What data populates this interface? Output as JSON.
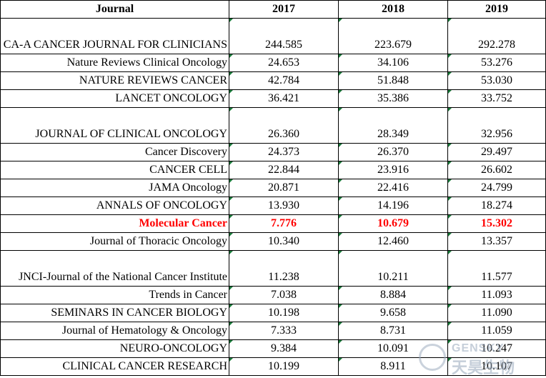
{
  "table": {
    "headers": [
      "Journal",
      "2017",
      "2018",
      "2019"
    ],
    "rows": [
      {
        "journal": "CA-A CANCER JOURNAL FOR CLINICIANS",
        "v2017": "244.585",
        "v2018": "223.679",
        "v2019": "292.278"
      },
      {
        "journal": "Nature Reviews Clinical Oncology",
        "v2017": "24.653",
        "v2018": "34.106",
        "v2019": "53.276"
      },
      {
        "journal": "NATURE REVIEWS CANCER",
        "v2017": "42.784",
        "v2018": "51.848",
        "v2019": "53.030"
      },
      {
        "journal": "LANCET ONCOLOGY",
        "v2017": "36.421",
        "v2018": "35.386",
        "v2019": "33.752"
      },
      {
        "journal": "JOURNAL OF CLINICAL ONCOLOGY",
        "v2017": "26.360",
        "v2018": "28.349",
        "v2019": "32.956"
      },
      {
        "journal": "Cancer Discovery",
        "v2017": "24.373",
        "v2018": "26.370",
        "v2019": "29.497"
      },
      {
        "journal": "CANCER CELL",
        "v2017": "22.844",
        "v2018": "23.916",
        "v2019": "26.602"
      },
      {
        "journal": "JAMA Oncology",
        "v2017": "20.871",
        "v2018": "22.416",
        "v2019": "24.799"
      },
      {
        "journal": "ANNALS OF ONCOLOGY",
        "v2017": "13.930",
        "v2018": "14.196",
        "v2019": "18.274"
      },
      {
        "journal": "Molecular Cancer",
        "v2017": "7.776",
        "v2018": "10.679",
        "v2019": "15.302"
      },
      {
        "journal": "Journal of Thoracic Oncology",
        "v2017": "10.340",
        "v2018": "12.460",
        "v2019": "13.357"
      },
      {
        "journal": "JNCI-Journal of the National Cancer Institute",
        "v2017": "11.238",
        "v2018": "10.211",
        "v2019": "11.577"
      },
      {
        "journal": "Trends in Cancer",
        "v2017": "7.038",
        "v2018": "8.884",
        "v2019": "11.093"
      },
      {
        "journal": "SEMINARS IN CANCER BIOLOGY",
        "v2017": "10.198",
        "v2018": "9.658",
        "v2019": "11.090"
      },
      {
        "journal": "Journal of Hematology & Oncology",
        "v2017": "7.333",
        "v2018": "8.731",
        "v2019": "11.059"
      },
      {
        "journal": "NEURO-ONCOLOGY",
        "v2017": "9.384",
        "v2018": "10.091",
        "v2019": "10.247"
      },
      {
        "journal": "CLINICAL CANCER RESEARCH",
        "v2017": "10.199",
        "v2018": "8.911",
        "v2019": "10.107"
      }
    ]
  },
  "highlight_color": "#ff0000",
  "watermark": {
    "top": "GENSKY",
    "bottom": "天昊生物"
  }
}
